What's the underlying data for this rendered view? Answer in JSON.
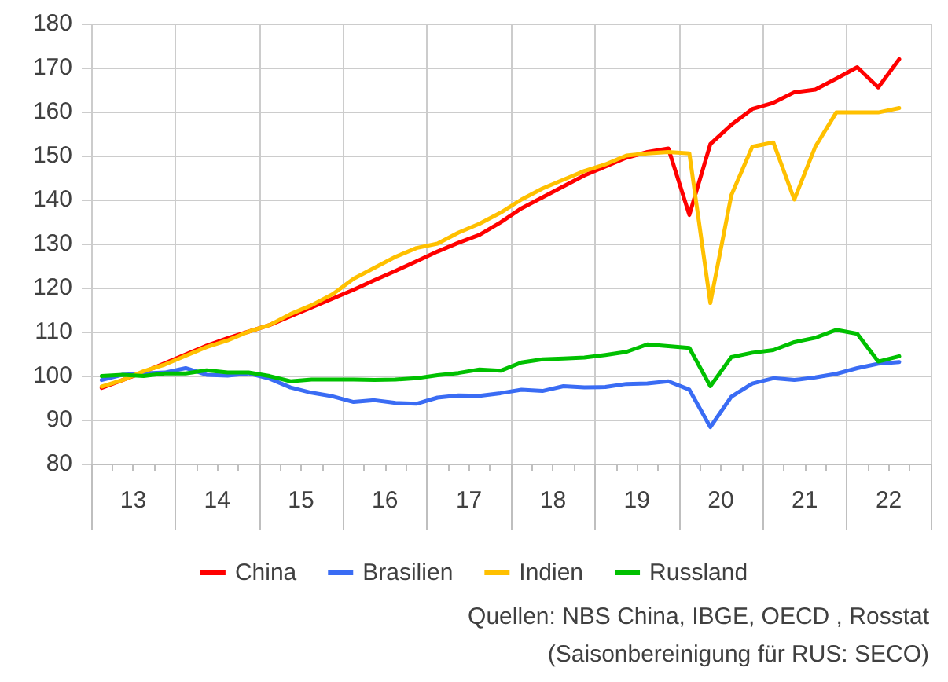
{
  "chart_data": {
    "type": "line",
    "x": [
      12.625,
      12.875,
      13.125,
      13.375,
      13.625,
      13.875,
      14.125,
      14.375,
      14.625,
      14.875,
      15.125,
      15.375,
      15.625,
      15.875,
      16.125,
      16.375,
      16.625,
      16.875,
      17.125,
      17.375,
      17.625,
      17.875,
      18.125,
      18.375,
      18.625,
      18.875,
      19.125,
      19.375,
      19.625,
      19.875,
      20.125,
      20.375,
      20.625,
      20.875,
      21.125,
      21.375,
      21.625,
      21.875,
      22.125
    ],
    "series": [
      {
        "name": "China",
        "color": "#ff0000",
        "values": [
          97.2,
          99,
          100.8,
          102.8,
          104.8,
          106.8,
          108.5,
          110,
          111.5,
          113.5,
          115.5,
          117.5,
          119.5,
          121.7,
          123.8,
          126,
          128.2,
          130.2,
          132,
          134.8,
          138,
          140.5,
          143,
          145.5,
          147.5,
          149.5,
          150.8,
          151.6,
          136.5,
          152.6,
          157,
          160.6,
          162,
          164.4,
          165,
          167.5,
          170.1,
          165.5,
          171.9
        ]
      },
      {
        "name": "Brasilien",
        "color": "#3a6cf4",
        "values": [
          99,
          100.2,
          100.5,
          100.7,
          101.7,
          100.2,
          100,
          100.5,
          99.3,
          97.3,
          96.1,
          95.3,
          94,
          94.4,
          93.8,
          93.6,
          95,
          95.5,
          95.4,
          96,
          96.8,
          96.5,
          97.6,
          97.3,
          97.4,
          98.1,
          98.2,
          98.7,
          96.8,
          88.3,
          95.2,
          98.2,
          99.4,
          99,
          99.6,
          100.4,
          101.7,
          102.7,
          103.1
        ]
      },
      {
        "name": "Indien",
        "color": "#ffc000",
        "values": [
          97.5,
          99,
          101,
          102.5,
          104.5,
          106.5,
          108,
          110,
          111.5,
          114,
          116,
          118.5,
          122,
          124.5,
          127,
          129,
          130,
          132.5,
          134.5,
          137,
          140,
          142.5,
          144.5,
          146.5,
          148,
          150,
          150.5,
          150.8,
          150.5,
          116.5,
          141,
          152,
          153,
          140,
          152,
          159.8,
          159.8,
          159.8,
          160.8
        ]
      },
      {
        "name": "Russland",
        "color": "#00c000",
        "values": [
          99.9,
          100.2,
          99.9,
          100.5,
          100.5,
          101.2,
          100.7,
          100.7,
          99.9,
          98.7,
          99.1,
          99.1,
          99.1,
          99,
          99.1,
          99.4,
          100.1,
          100.6,
          101.4,
          101.1,
          103,
          103.7,
          103.9,
          104.1,
          104.7,
          105.4,
          107.1,
          106.7,
          106.3,
          97.6,
          104.2,
          105.2,
          105.8,
          107.6,
          108.6,
          110.4,
          109.5,
          103.2,
          104.4
        ]
      }
    ],
    "xlim": [
      12.5,
      22.5
    ],
    "xticks": [
      {
        "value": 12.5,
        "label": null
      },
      {
        "value": 12.75,
        "label": null
      },
      13,
      {
        "value": 13.25,
        "label": null
      },
      {
        "value": 13.5,
        "label": null
      },
      {
        "value": 13.75,
        "label": null
      },
      14,
      {
        "value": 14.25,
        "label": null
      },
      {
        "value": 14.5,
        "label": null
      },
      {
        "value": 14.75,
        "label": null
      },
      15,
      {
        "value": 15.25,
        "label": null
      },
      {
        "value": 15.5,
        "label": null
      },
      {
        "value": 15.75,
        "label": null
      },
      16,
      {
        "value": 16.25,
        "label": null
      },
      {
        "value": 16.5,
        "label": null
      },
      {
        "value": 16.75,
        "label": null
      },
      17,
      {
        "value": 17.25,
        "label": null
      },
      {
        "value": 17.5,
        "label": null
      },
      {
        "value": 17.75,
        "label": null
      },
      18,
      {
        "value": 18.25,
        "label": null
      },
      {
        "value": 18.5,
        "label": null
      },
      {
        "value": 18.75,
        "label": null
      },
      19,
      {
        "value": 19.25,
        "label": null
      },
      {
        "value": 19.5,
        "label": null
      },
      {
        "value": 19.75,
        "label": null
      },
      20,
      {
        "value": 20.25,
        "label": null
      },
      {
        "value": 20.5,
        "label": null
      },
      {
        "value": 20.75,
        "label": null
      },
      21,
      {
        "value": 21.25,
        "label": null
      },
      {
        "value": 21.5,
        "label": null
      },
      {
        "value": 21.75,
        "label": null
      },
      22,
      {
        "value": 22.25,
        "label": null
      },
      {
        "value": 22.5,
        "label": null
      }
    ],
    "ylim": [
      80,
      180
    ],
    "yticks": [
      80,
      90,
      100,
      110,
      120,
      130,
      140,
      150,
      160,
      170,
      180
    ],
    "grid": true,
    "legend": "bottom",
    "marker": "none",
    "line_style": "solid",
    "annotations": [
      "Quellen: NBS China, IBGE, OECD , Rosstat",
      "(Saisonbereinigung für RUS: SECO)"
    ]
  }
}
